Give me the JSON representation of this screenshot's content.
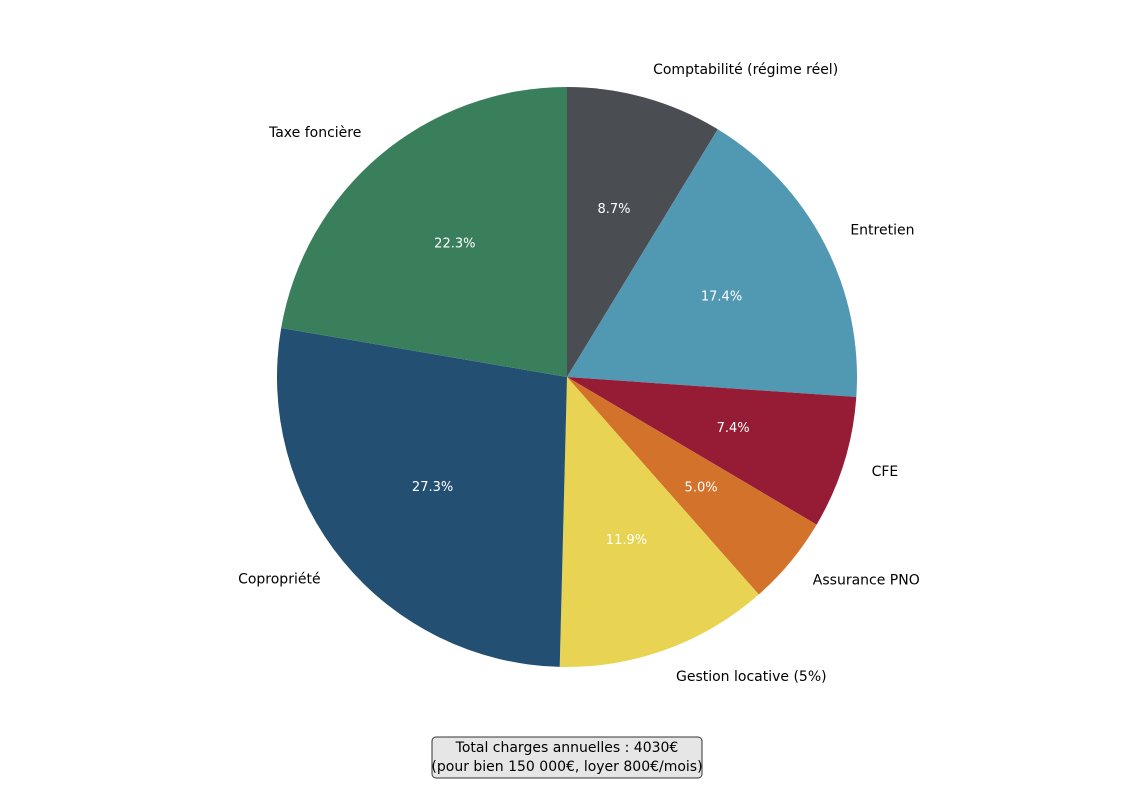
{
  "chart_data": {
    "type": "pie",
    "categories": [
      "Comptabilité (régime réel)",
      "Entretien",
      "CFE",
      "Assurance PNO",
      "Gestion locative (5%)",
      "Copropriété",
      "Taxe foncière"
    ],
    "values": [
      8.7,
      17.4,
      7.4,
      5.0,
      11.9,
      27.3,
      22.3
    ],
    "value_labels": [
      "8.7%",
      "17.4%",
      "7.4%",
      "5.0%",
      "11.9%",
      "27.3%",
      "22.3%"
    ],
    "colors": [
      "#4a4d52",
      "#5198b3",
      "#961b35",
      "#d3722b",
      "#e8d452",
      "#224f72",
      "#3a7f5c"
    ],
    "annotation": [
      "Total charges annuelles : 4030€",
      "(pour bien 150 000€, loyer 800€/mois)"
    ]
  }
}
